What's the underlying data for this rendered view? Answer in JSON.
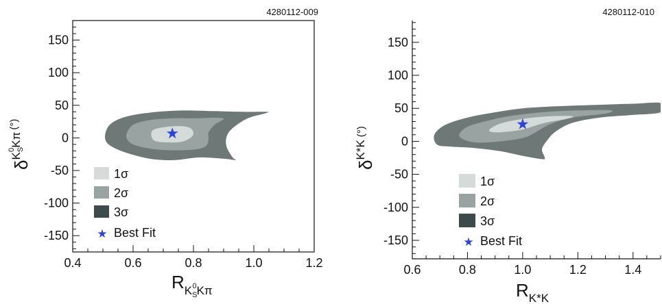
{
  "colors": {
    "sigma1": "#d5dbd9",
    "sigma2": "#99a3a1",
    "sigma3": "#6d7877",
    "sigma3_legend": "#3d4a4c",
    "best_fit": "#2b43d8",
    "axis": "#111111"
  },
  "chart_data": [
    {
      "type": "contour",
      "figure_id": "4280112-009",
      "xlabel": {
        "main": "R",
        "sub_prefix": "K",
        "sub_sub": "S",
        "sub_sup": "0",
        "sub_suffix": "Kπ"
      },
      "ylabel": {
        "main": "δ",
        "sup_prefix": "K",
        "sup_sub": "S",
        "sup_sup": "0",
        "sup_suffix": "Kπ",
        "unit": "(°)"
      },
      "xlim": [
        0.4,
        1.2
      ],
      "ylim": [
        -175,
        180
      ],
      "xticks": [
        0.4,
        0.6,
        0.8,
        1.0,
        1.2
      ],
      "xtick_labels": [
        "0.4",
        "0.6",
        "0.8",
        "1.0",
        "1.2"
      ],
      "yticks": [
        150,
        100,
        50,
        0,
        -50,
        -100,
        -150
      ],
      "ytick_labels": [
        "150",
        "100",
        "50",
        "0",
        "-50",
        "-100",
        "-150"
      ],
      "best_fit": {
        "x": 0.73,
        "y": 8
      },
      "legend": [
        "1σ",
        "2σ",
        "3σ",
        "Best Fit"
      ],
      "legend_position": "bottom-left",
      "contours": {
        "sigma3": [
          [
            0.51,
            10
          ],
          [
            0.53,
            23
          ],
          [
            0.58,
            33
          ],
          [
            0.66,
            39
          ],
          [
            0.76,
            42
          ],
          [
            0.87,
            41
          ],
          [
            0.96,
            40
          ],
          [
            1.04,
            40
          ],
          [
            1.04,
            38
          ],
          [
            0.98,
            30
          ],
          [
            0.93,
            15
          ],
          [
            0.91,
            2
          ],
          [
            0.91,
            -14
          ],
          [
            0.93,
            -30
          ],
          [
            0.94,
            -34
          ],
          [
            0.9,
            -32
          ],
          [
            0.82,
            -30
          ],
          [
            0.74,
            -34
          ],
          [
            0.67,
            -33
          ],
          [
            0.6,
            -26
          ],
          [
            0.54,
            -16
          ],
          [
            0.51,
            -5
          ],
          [
            0.51,
            10
          ]
        ],
        "sigma2": [
          [
            0.58,
            8
          ],
          [
            0.6,
            20
          ],
          [
            0.65,
            27
          ],
          [
            0.73,
            30
          ],
          [
            0.81,
            30
          ],
          [
            0.87,
            31
          ],
          [
            0.9,
            29
          ],
          [
            0.87,
            20
          ],
          [
            0.85,
            8
          ],
          [
            0.85,
            -2
          ],
          [
            0.84,
            -13
          ],
          [
            0.8,
            -18
          ],
          [
            0.72,
            -19
          ],
          [
            0.65,
            -16
          ],
          [
            0.6,
            -10
          ],
          [
            0.58,
            -2
          ],
          [
            0.58,
            8
          ]
        ],
        "sigma1": [
          [
            0.66,
            6
          ],
          [
            0.67,
            13
          ],
          [
            0.71,
            17
          ],
          [
            0.76,
            18
          ],
          [
            0.79,
            15
          ],
          [
            0.8,
            7
          ],
          [
            0.79,
            0
          ],
          [
            0.76,
            -6
          ],
          [
            0.71,
            -7
          ],
          [
            0.67,
            -4
          ],
          [
            0.66,
            6
          ]
        ]
      }
    },
    {
      "type": "contour",
      "figure_id": "4280112-010",
      "xlabel": {
        "main": "R",
        "sub": "K*K"
      },
      "ylabel": {
        "main": "δ",
        "sup": "K*K",
        "unit": "(°)"
      },
      "xlim": [
        0.6,
        1.5
      ],
      "ylim": [
        -178,
        183
      ],
      "xticks": [
        0.6,
        0.8,
        1.0,
        1.2,
        1.4
      ],
      "xtick_labels": [
        "0.6",
        "0.8",
        "1.0",
        "1.2",
        "1.4"
      ],
      "yticks": [
        150,
        100,
        50,
        0,
        -50,
        -100,
        -150
      ],
      "ytick_labels": [
        "150",
        "100",
        "50",
        "0",
        "-50",
        "-100",
        "-150"
      ],
      "best_fit": {
        "x": 1.0,
        "y": 27
      },
      "legend": [
        "1σ",
        "2σ",
        "3σ",
        "Best Fit"
      ],
      "legend_position": "bottom-left",
      "contours": {
        "sigma3": [
          [
            0.68,
            10
          ],
          [
            0.72,
            25
          ],
          [
            0.8,
            36
          ],
          [
            0.9,
            44
          ],
          [
            1.0,
            50
          ],
          [
            1.12,
            53
          ],
          [
            1.25,
            55
          ],
          [
            1.4,
            57
          ],
          [
            1.5,
            58
          ],
          [
            1.5,
            44
          ],
          [
            1.4,
            40
          ],
          [
            1.28,
            36
          ],
          [
            1.18,
            28
          ],
          [
            1.12,
            15
          ],
          [
            1.09,
            2
          ],
          [
            1.07,
            -12
          ],
          [
            1.08,
            -25
          ],
          [
            1.07,
            -27
          ],
          [
            1.0,
            -22
          ],
          [
            0.92,
            -15
          ],
          [
            0.82,
            -10
          ],
          [
            0.74,
            -8
          ],
          [
            0.69,
            -5
          ],
          [
            0.68,
            10
          ]
        ],
        "sigma2": [
          [
            0.77,
            10
          ],
          [
            0.8,
            22
          ],
          [
            0.88,
            32
          ],
          [
            0.98,
            40
          ],
          [
            1.1,
            45
          ],
          [
            1.22,
            47
          ],
          [
            1.32,
            47
          ],
          [
            1.3,
            42
          ],
          [
            1.18,
            36
          ],
          [
            1.1,
            26
          ],
          [
            1.04,
            12
          ],
          [
            1.0,
            5
          ],
          [
            0.92,
            0
          ],
          [
            0.84,
            -2
          ],
          [
            0.79,
            2
          ],
          [
            0.77,
            10
          ]
        ],
        "sigma1": [
          [
            0.88,
            18
          ],
          [
            0.92,
            27
          ],
          [
            1.0,
            34
          ],
          [
            1.1,
            38
          ],
          [
            1.18,
            38
          ],
          [
            1.16,
            34
          ],
          [
            1.08,
            28
          ],
          [
            1.0,
            18
          ],
          [
            0.93,
            14
          ],
          [
            0.89,
            14
          ],
          [
            0.88,
            18
          ]
        ]
      }
    }
  ]
}
